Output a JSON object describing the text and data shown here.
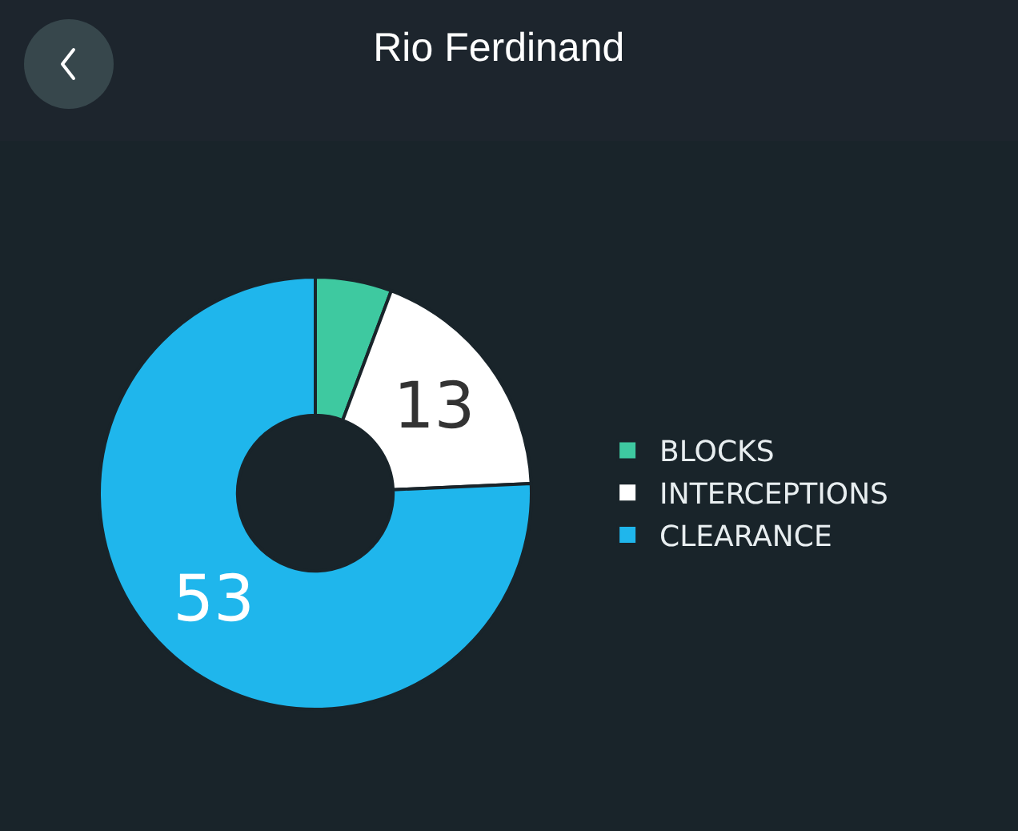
{
  "chart_data": {
    "type": "donut",
    "title": "Rio Ferdinand",
    "categories": [
      "BLOCKS",
      "INTERCEPTIONS",
      "CLEARANCE"
    ],
    "values": [
      4,
      13,
      53
    ],
    "colors": [
      "#3ec9a0",
      "#ffffff",
      "#1fb6ec"
    ],
    "value_labels": [
      null,
      "13",
      "53"
    ],
    "legend": "right"
  }
}
